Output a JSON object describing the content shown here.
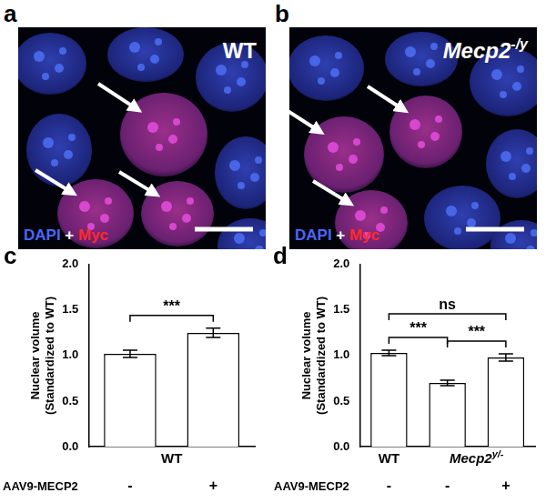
{
  "images": [
    {
      "panel": "a",
      "label": "WT",
      "stain": [
        "DAPI",
        "+",
        "Myc"
      ]
    },
    {
      "panel": "b",
      "label": {
        "text": "Mecp2",
        "sup": "-/y"
      },
      "stain": [
        "DAPI",
        "+",
        "Myc"
      ]
    }
  ],
  "chart_data": [
    {
      "panel": "c",
      "type": "bar",
      "y_label": [
        "Nuclear volume",
        "(Standardized to WT)"
      ],
      "categories": [
        "-",
        "+"
      ],
      "groups": [
        "WT",
        "WT"
      ],
      "row_label": "AAV9-MECP2",
      "values": [
        1.02,
        1.25
      ],
      "errors": [
        0.04,
        0.05
      ],
      "significance": [
        {
          "from": 0,
          "to": 1,
          "label": "***"
        }
      ],
      "color": "#ffffff",
      "ylim": [
        0,
        2
      ],
      "yticks": [
        {
          "value": 0,
          "label": "0.0"
        },
        {
          "value": 0.5,
          "label": "0.5"
        },
        {
          "value": 1,
          "label": "1.0"
        },
        {
          "value": 1.5,
          "label": "1.5"
        },
        {
          "value": 2,
          "label": "2.0"
        }
      ],
      "grid": false
    },
    {
      "panel": "d",
      "type": "bar",
      "y_label": [
        "Nuclear volume",
        "(Standardized to WT)"
      ],
      "categories": [
        "-",
        "-",
        "+"
      ],
      "groups": [
        "WT",
        {
          "text": "Mecp2",
          "sup": "y/-"
        },
        {
          "text": "Mecp2",
          "sup": "y/-"
        }
      ],
      "row_label": "AAV9-MECP2",
      "values": [
        1.03,
        0.7,
        0.98
      ],
      "errors": [
        0.03,
        0.03,
        0.04
      ],
      "significance": [
        {
          "from": 0,
          "to": 1,
          "label": "***"
        },
        {
          "from": 1,
          "to": 2,
          "label": "***"
        },
        {
          "from": 0,
          "to": 2,
          "label": "ns"
        }
      ],
      "color": "#ffffff",
      "ylim": [
        0,
        2
      ],
      "yticks": [
        {
          "value": 0,
          "label": "0.0"
        },
        {
          "value": 0.5,
          "label": "0.5"
        },
        {
          "value": 1,
          "label": "1.0"
        },
        {
          "value": 1.5,
          "label": "1.5"
        },
        {
          "value": 2,
          "label": "2.0"
        }
      ],
      "grid": false
    }
  ]
}
